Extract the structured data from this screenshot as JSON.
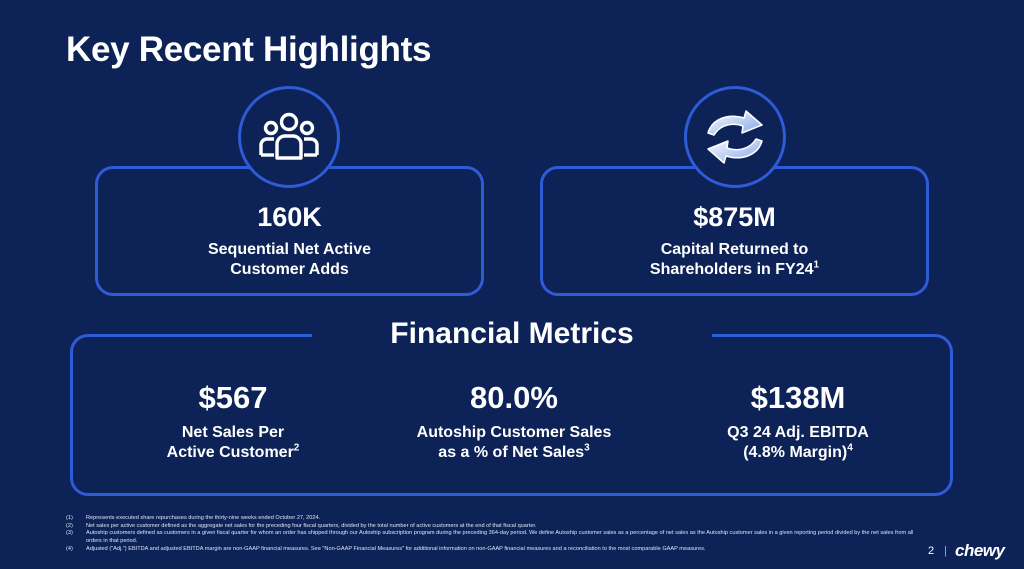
{
  "title": "Key Recent Highlights",
  "highlights": [
    {
      "icon": "users-group-icon",
      "value": "160K",
      "line1": "Sequential Net Active",
      "line2": "Customer Adds",
      "sup": ""
    },
    {
      "icon": "refresh-arrows-icon",
      "value": "$875M",
      "line1": "Capital Returned to",
      "line2": "Shareholders in FY24",
      "sup": "1"
    }
  ],
  "financial_title": "Financial Metrics",
  "metrics": [
    {
      "value": "$567",
      "line1": "Net Sales Per",
      "line2": "Active Customer",
      "sup": "2"
    },
    {
      "value": "80.0%",
      "line1": "Autoship Customer Sales",
      "line2": "as a % of Net Sales",
      "sup": "3"
    },
    {
      "value": "$138M",
      "line1": "Q3 24 Adj. EBITDA",
      "line2": "(4.8% Margin)",
      "sup": "4"
    }
  ],
  "footnotes": [
    {
      "num": "(1)",
      "text": "Represents executed share repurchases during the thirty-nine weeks ended October 27, 2024."
    },
    {
      "num": "(2)",
      "text": "Net sales per active customer defined as the aggregate net sales for the preceding four fiscal quarters, divided by the total number of active customers at the end of that fiscal quarter."
    },
    {
      "num": "(3)",
      "text": "Autoship customers defined as customers in a given fiscal quarter for whom an order has shipped through our Autoship subscription program during the preceding 364-day period. We define Autoship customer sales as a percentage of net sales as the Autoship customer sales in a given reporting period divided by the net sales from all orders in that period."
    },
    {
      "num": "(4)",
      "text": "Adjusted (\"Adj.\") EBITDA and adjusted EBITDA margin are non-GAAP financial measures. See \"Non-GAAP Financial Measures\" for additional information on non-GAAP financial measures and a reconciliation to the most comparable GAAP measures."
    }
  ],
  "footer": {
    "page": "2",
    "separator": "|",
    "logo": "chewy"
  },
  "colors": {
    "background": "#0d2257",
    "accent": "#2e5bd6"
  }
}
